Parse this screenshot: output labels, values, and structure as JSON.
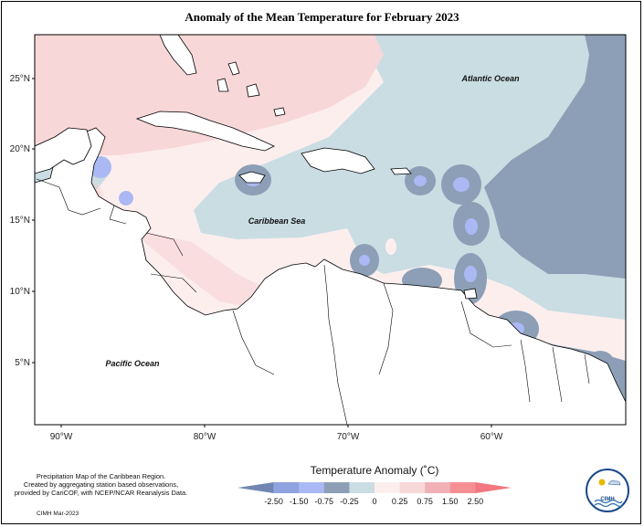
{
  "title": "Anomaly of the Mean Temperature for February 2023",
  "map": {
    "lat_labels": [
      "25°N",
      "20°N",
      "15°N",
      "10°N",
      "5°N"
    ],
    "lon_labels": [
      "90°W",
      "80°W",
      "70°W",
      "60°W"
    ],
    "place_labels": {
      "atlantic": "Atlantic Ocean",
      "caribbean": "Caribbean Sea",
      "pacific": "Pacific Ocean"
    }
  },
  "legend": {
    "title": "Temperature Anomaly (˚C)",
    "ticks": [
      "-2.50",
      "-1.50",
      "-0.75",
      "-0.25",
      "0",
      "0.25",
      "0.75",
      "1.50",
      "2.50"
    ],
    "colors": [
      "#6f86b2",
      "#8ea3e0",
      "#aab9f3",
      "#8c9fb6",
      "#c9dde3",
      "#fdeeee",
      "#f8d7d8",
      "#f1b0b6",
      "#f58f94",
      "#f2777f"
    ]
  },
  "credit": {
    "line1": "Precipitation Map of the Caribbean Region.",
    "line2": "Created by aggregating station based observations,",
    "line3": "provided by CariCOF, with NCEP/NCAR Reanalysis Data.",
    "signature": "CIMH Mar-2023"
  },
  "logo": {
    "text": "CIMH"
  }
}
